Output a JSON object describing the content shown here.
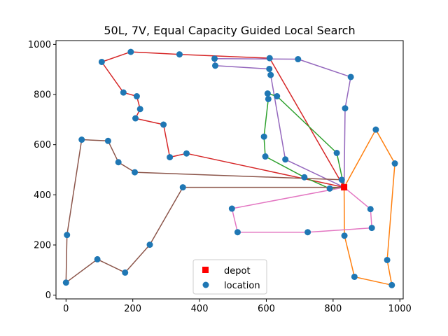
{
  "chart_data": {
    "type": "scatter",
    "title": "50L, 7V, Equal Capacity Guided Local Search",
    "xlabel": "",
    "ylabel": "",
    "xlim": [
      -30,
      1010
    ],
    "ylim": [
      -15,
      1015
    ],
    "xticks": [
      0,
      200,
      400,
      600,
      800,
      1000
    ],
    "yticks": [
      0,
      200,
      400,
      600,
      800,
      1000
    ],
    "grid": false,
    "legend": {
      "placement": "lower-center",
      "entries": [
        {
          "label": "depot",
          "marker": "square",
          "color": "#ff0000"
        },
        {
          "label": "location",
          "marker": "circle",
          "color": "#1f77b4"
        }
      ]
    },
    "depot": {
      "x": 833,
      "y": 430
    },
    "locations": [
      {
        "x": 194,
        "y": 970
      },
      {
        "x": 340,
        "y": 960
      },
      {
        "x": 107,
        "y": 930
      },
      {
        "x": 610,
        "y": 945
      },
      {
        "x": 445,
        "y": 943
      },
      {
        "x": 695,
        "y": 941
      },
      {
        "x": 447,
        "y": 915
      },
      {
        "x": 609,
        "y": 902
      },
      {
        "x": 613,
        "y": 878
      },
      {
        "x": 853,
        "y": 870
      },
      {
        "x": 172,
        "y": 808
      },
      {
        "x": 604,
        "y": 804
      },
      {
        "x": 632,
        "y": 793
      },
      {
        "x": 212,
        "y": 793
      },
      {
        "x": 606,
        "y": 782
      },
      {
        "x": 836,
        "y": 745
      },
      {
        "x": 222,
        "y": 742
      },
      {
        "x": 208,
        "y": 705
      },
      {
        "x": 292,
        "y": 680
      },
      {
        "x": 928,
        "y": 660
      },
      {
        "x": 593,
        "y": 632
      },
      {
        "x": 47,
        "y": 620
      },
      {
        "x": 126,
        "y": 615
      },
      {
        "x": 811,
        "y": 567
      },
      {
        "x": 361,
        "y": 565
      },
      {
        "x": 311,
        "y": 550
      },
      {
        "x": 597,
        "y": 553
      },
      {
        "x": 657,
        "y": 541
      },
      {
        "x": 157,
        "y": 530
      },
      {
        "x": 985,
        "y": 525
      },
      {
        "x": 206,
        "y": 490
      },
      {
        "x": 714,
        "y": 470
      },
      {
        "x": 826,
        "y": 460
      },
      {
        "x": 350,
        "y": 430
      },
      {
        "x": 790,
        "y": 425
      },
      {
        "x": 497,
        "y": 345
      },
      {
        "x": 912,
        "y": 343
      },
      {
        "x": 916,
        "y": 268
      },
      {
        "x": 514,
        "y": 251
      },
      {
        "x": 724,
        "y": 251
      },
      {
        "x": 3,
        "y": 240
      },
      {
        "x": 834,
        "y": 237
      },
      {
        "x": 251,
        "y": 201
      },
      {
        "x": 94,
        "y": 143
      },
      {
        "x": 962,
        "y": 140
      },
      {
        "x": 177,
        "y": 90
      },
      {
        "x": 864,
        "y": 73
      },
      {
        "x": 0,
        "y": 50
      },
      {
        "x": 976,
        "y": 40
      }
    ],
    "routes": [
      {
        "color": "#d62728",
        "path": [
          [
            833,
            430
          ],
          [
            610,
            945
          ],
          [
            340,
            960
          ],
          [
            194,
            970
          ],
          [
            107,
            930
          ],
          [
            172,
            808
          ],
          [
            212,
            793
          ],
          [
            222,
            742
          ],
          [
            208,
            705
          ],
          [
            292,
            680
          ],
          [
            311,
            550
          ],
          [
            361,
            565
          ],
          [
            833,
            430
          ]
        ]
      },
      {
        "color": "#9467bd",
        "path": [
          [
            833,
            430
          ],
          [
            657,
            541
          ],
          [
            613,
            878
          ],
          [
            609,
            902
          ],
          [
            447,
            915
          ],
          [
            445,
            943
          ],
          [
            695,
            941
          ],
          [
            853,
            870
          ],
          [
            836,
            745
          ],
          [
            833,
            430
          ]
        ]
      },
      {
        "color": "#2ca02c",
        "path": [
          [
            833,
            430
          ],
          [
            811,
            567
          ],
          [
            632,
            793
          ],
          [
            604,
            804
          ],
          [
            606,
            782
          ],
          [
            593,
            632
          ],
          [
            597,
            553
          ],
          [
            714,
            470
          ],
          [
            790,
            425
          ],
          [
            833,
            430
          ]
        ]
      },
      {
        "color": "#ff7f0e",
        "path": [
          [
            833,
            430
          ],
          [
            928,
            660
          ],
          [
            985,
            525
          ],
          [
            962,
            140
          ],
          [
            976,
            40
          ],
          [
            864,
            73
          ],
          [
            834,
            237
          ],
          [
            833,
            430
          ]
        ]
      },
      {
        "color": "#e377c2",
        "path": [
          [
            833,
            430
          ],
          [
            912,
            343
          ],
          [
            916,
            268
          ],
          [
            724,
            251
          ],
          [
            514,
            251
          ],
          [
            497,
            345
          ],
          [
            833,
            430
          ]
        ]
      },
      {
        "color": "#8c564b",
        "path": [
          [
            833,
            430
          ],
          [
            826,
            460
          ],
          [
            206,
            490
          ],
          [
            157,
            530
          ],
          [
            126,
            615
          ],
          [
            47,
            620
          ],
          [
            3,
            240
          ],
          [
            0,
            50
          ],
          [
            94,
            143
          ],
          [
            177,
            90
          ],
          [
            251,
            201
          ],
          [
            350,
            430
          ],
          [
            833,
            430
          ]
        ]
      }
    ],
    "colors": {
      "location": "#1f77b4",
      "depot": "#ff0000",
      "axes": "#000000"
    }
  }
}
